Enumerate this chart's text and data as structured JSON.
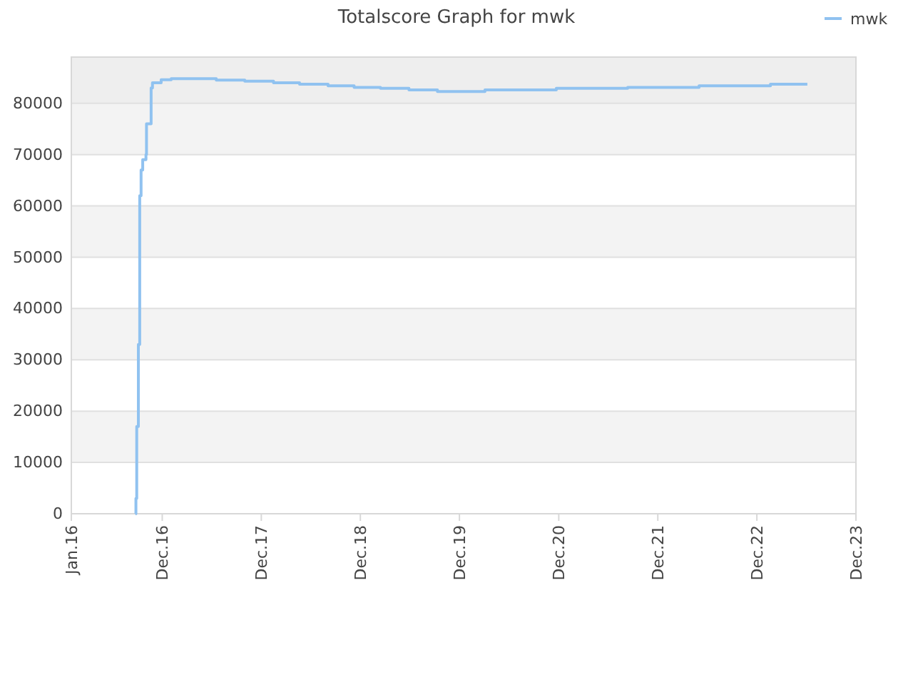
{
  "chart_data": {
    "type": "step",
    "title": "Totalscore Graph for mwk",
    "x": [
      "2016-08-24",
      "2016-08-26",
      "2016-08-29",
      "2016-09-04",
      "2016-09-09",
      "2016-09-14",
      "2016-09-20",
      "2016-10-02",
      "2016-10-04",
      "2016-10-21",
      "2016-10-26",
      "2016-11-27",
      "2017-01-03",
      "2017-06-18",
      "2017-10-01",
      "2018-01-15",
      "2018-04-21",
      "2018-08-04",
      "2018-11-08",
      "2019-02-13",
      "2019-05-29",
      "2019-09-11",
      "2020-03-04",
      "2020-11-22",
      "2021-08-12",
      "2022-05-02",
      "2023-01-20",
      "2023-06-05"
    ],
    "series": [
      {
        "name": "mwk",
        "color": "#90c2f0",
        "values": [
          0,
          3000,
          17000,
          33000,
          62000,
          67000,
          69000,
          70000,
          76000,
          83000,
          84000,
          84600,
          84800,
          84500,
          84300,
          84000,
          83700,
          83400,
          83100,
          82900,
          82600,
          82300,
          82600,
          82900,
          83100,
          83400,
          83700,
          83700
        ]
      }
    ],
    "xlim": [
      "2016-01-01",
      "2023-12-01"
    ],
    "xticks": [
      {
        "value": "2016-01-01",
        "label": "Jan.16"
      },
      {
        "value": "2016-12-01",
        "label": "Dec.16"
      },
      {
        "value": "2017-12-01",
        "label": "Dec.17"
      },
      {
        "value": "2018-12-01",
        "label": "Dec.18"
      },
      {
        "value": "2019-12-01",
        "label": "Dec.19"
      },
      {
        "value": "2020-12-01",
        "label": "Dec.20"
      },
      {
        "value": "2021-12-01",
        "label": "Dec.21"
      },
      {
        "value": "2022-12-01",
        "label": "Dec.22"
      },
      {
        "value": "2023-12-01",
        "label": "Dec.23"
      }
    ],
    "ylim": [
      0,
      89000
    ],
    "yticks": [
      0,
      10000,
      20000,
      30000,
      40000,
      50000,
      60000,
      70000,
      80000
    ],
    "bands": [
      {
        "axis": "y",
        "from": 10000,
        "to": 20000,
        "color": "#f3f3f3"
      },
      {
        "axis": "y",
        "from": 30000,
        "to": 40000,
        "color": "#f3f3f3"
      },
      {
        "axis": "y",
        "from": 50000,
        "to": 60000,
        "color": "#f3f3f3"
      },
      {
        "axis": "y",
        "from": 70000,
        "to": 80000,
        "color": "#f3f3f3"
      },
      {
        "axis": "y",
        "from": 80000,
        "to": 89000,
        "color": "#eeeeee"
      }
    ],
    "grid": "y",
    "legend": "top right",
    "marker": "none",
    "line_style": "solid"
  }
}
